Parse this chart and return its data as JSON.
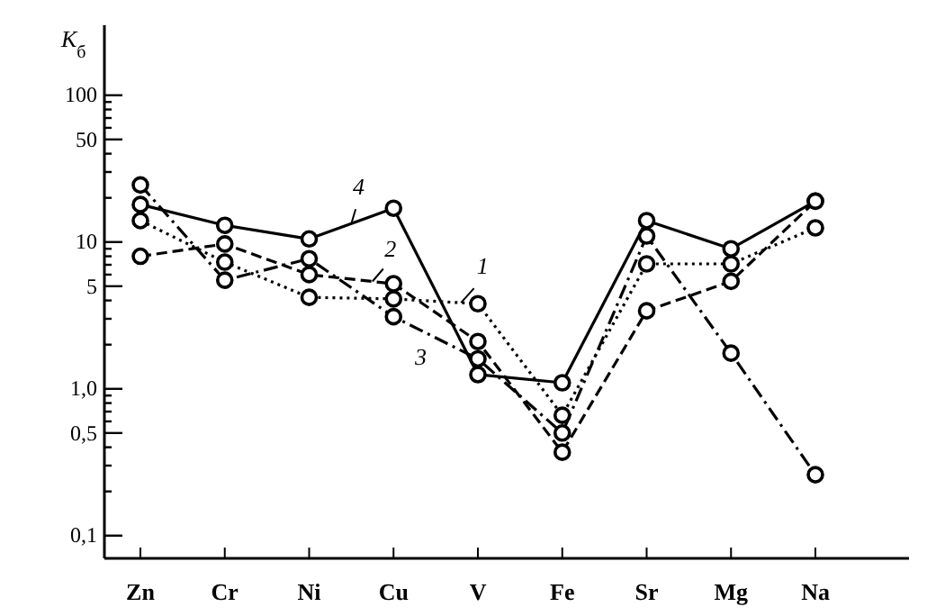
{
  "chart_data": {
    "type": "line",
    "ylabel": "K$_{б}$",
    "categories": [
      "Zn",
      "Cr",
      "Ni",
      "Cu",
      "V",
      "Fe",
      "Sr",
      "Mg",
      "Na"
    ],
    "log": true,
    "ylim": [
      0.07,
      300
    ],
    "yticks": [
      {
        "value": 0.1,
        "label": "0,1"
      },
      {
        "value": 0.2,
        "label": null
      },
      {
        "value": 0.3,
        "label": null
      },
      {
        "value": 0.4,
        "label": null
      },
      {
        "value": 0.5,
        "label": "0,5"
      },
      {
        "value": 0.6,
        "label": null
      },
      {
        "value": 0.7,
        "label": null
      },
      {
        "value": 0.8,
        "label": null
      },
      {
        "value": 0.9,
        "label": null
      },
      {
        "value": 1,
        "label": "1,0"
      },
      {
        "value": 2,
        "label": null
      },
      {
        "value": 3,
        "label": null
      },
      {
        "value": 4,
        "label": null
      },
      5,
      {
        "value": 6,
        "label": null
      },
      {
        "value": 7,
        "label": null
      },
      {
        "value": 8,
        "label": null
      },
      {
        "value": 9,
        "label": null
      },
      10,
      {
        "value": 20,
        "label": null
      },
      {
        "value": 30,
        "label": null
      },
      {
        "value": 40,
        "label": null
      },
      50,
      {
        "value": 60,
        "label": null
      },
      {
        "value": 70,
        "label": null
      },
      {
        "value": 80,
        "label": null
      },
      {
        "value": 90,
        "label": null
      },
      100
    ],
    "grid": false,
    "marker": "circle",
    "series": [
      {
        "name": "1",
        "color": "#000000",
        "line_style": "dotted",
        "values": [
          14,
          7.3,
          4.2,
          4.1,
          3.8,
          0.66,
          7.1,
          7.1,
          12.5
        ]
      },
      {
        "name": "2",
        "color": "#000000",
        "line_style": "dashed",
        "values": [
          8,
          9.7,
          6,
          5.2,
          2.1,
          0.37,
          3.4,
          5.4,
          19
        ]
      },
      {
        "name": "3",
        "color": "#000000",
        "line_style": "dashdot",
        "values": [
          24.5,
          5.5,
          7.7,
          3.1,
          1.6,
          0.5,
          11,
          1.75,
          0.26
        ]
      },
      {
        "name": "4",
        "color": "#000000",
        "line_style": "solid",
        "values": [
          18,
          13,
          10.5,
          17,
          1.25,
          1.1,
          14,
          9,
          19
        ]
      }
    ]
  }
}
